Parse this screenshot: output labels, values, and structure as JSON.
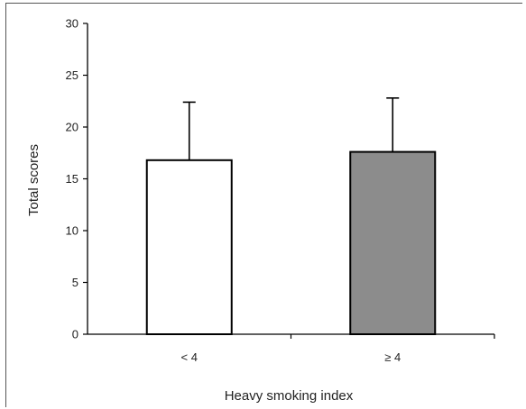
{
  "chart_data": {
    "type": "bar",
    "categories": [
      "< 4",
      "≥ 4"
    ],
    "values": [
      16.8,
      17.6
    ],
    "error_upper": [
      22.4,
      22.8
    ],
    "bar_colors": [
      "#ffffff",
      "#8c8c8c"
    ],
    "xlabel": "Heavy smoking index",
    "ylabel": "Total scores",
    "ylim": [
      0,
      30
    ],
    "yticks": [
      0,
      5,
      10,
      15,
      20,
      25,
      30
    ],
    "grid": false,
    "legend": "none"
  }
}
